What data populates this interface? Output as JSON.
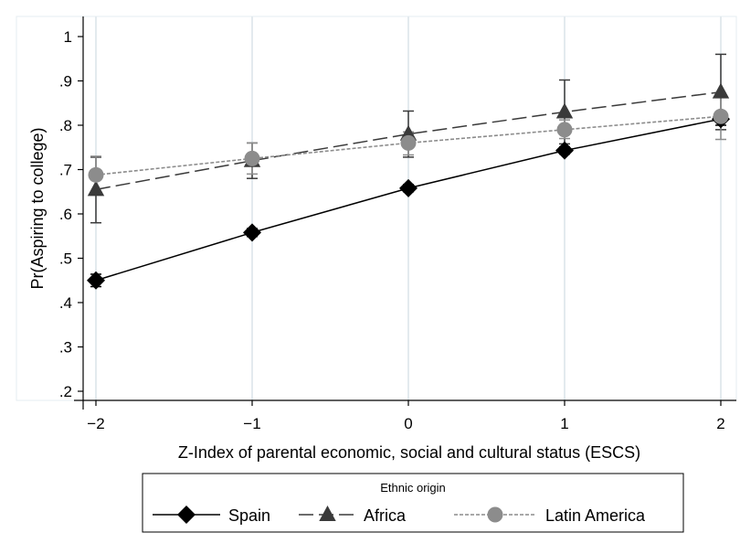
{
  "chart_data": {
    "type": "line",
    "title": "",
    "xlabel": "Z-Index of parental economic, social and cultural status (ESCS)",
    "ylabel": "Pr(Aspiring to college)",
    "x": [
      -2,
      -1,
      0,
      1,
      2
    ],
    "x_tick_labels": [
      "−2",
      "−1",
      "0",
      "1",
      "2"
    ],
    "y_ticks": [
      0.2,
      0.3,
      0.4,
      0.5,
      0.6,
      0.7,
      0.8,
      0.9,
      1.0
    ],
    "y_tick_labels": [
      ".2",
      ".3",
      ".4",
      ".5",
      ".6",
      ".7",
      ".8",
      ".9",
      "1"
    ],
    "xlim": [
      -2,
      2
    ],
    "ylim": [
      0.2,
      1.0
    ],
    "grid": "vertical",
    "legend": {
      "title": "Ethnic origin",
      "placement": "bottom",
      "entries": [
        "Spain",
        "Africa",
        "Latin America"
      ]
    },
    "series": [
      {
        "name": "Spain",
        "marker": "diamond",
        "line": "solid",
        "color": "#000000",
        "values": [
          0.45,
          0.558,
          0.658,
          0.743,
          0.814
        ],
        "ci_low": [
          0.436,
          0.549,
          0.65,
          0.735,
          0.8
        ],
        "ci_high": [
          0.464,
          0.567,
          0.666,
          0.751,
          0.828
        ]
      },
      {
        "name": "Africa",
        "marker": "triangle",
        "line": "long-dash",
        "color": "#3a3a3a",
        "values": [
          0.655,
          0.72,
          0.78,
          0.83,
          0.875
        ],
        "ci_low": [
          0.58,
          0.68,
          0.728,
          0.758,
          0.79
        ],
        "ci_high": [
          0.728,
          0.76,
          0.832,
          0.902,
          0.96
        ]
      },
      {
        "name": "Latin America",
        "marker": "circle",
        "line": "short-dash",
        "color": "#8c8c8c",
        "values": [
          0.688,
          0.725,
          0.76,
          0.79,
          0.82
        ],
        "ci_low": [
          0.645,
          0.69,
          0.733,
          0.77,
          0.768
        ],
        "ci_high": [
          0.73,
          0.76,
          0.785,
          0.812,
          0.872
        ]
      }
    ]
  }
}
